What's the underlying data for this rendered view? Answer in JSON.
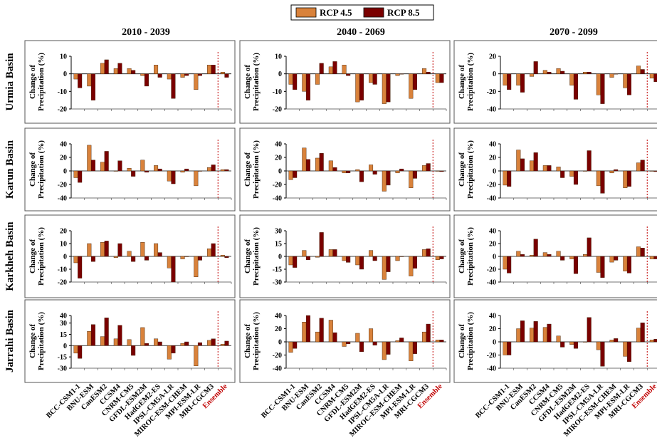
{
  "legend": {
    "items": [
      {
        "label": "RCP 4.5",
        "color": "#d9823b"
      },
      {
        "label": "RCP 8.5",
        "color": "#7a0000"
      }
    ]
  },
  "periods": [
    "2010 - 2039",
    "2040 - 2069",
    "2070 - 2099"
  ],
  "basins": [
    "Urmia Basin",
    "Karun Basin",
    "Karkheh Basin",
    "Jarrahi Basin"
  ],
  "ylabel_line1": "Change of",
  "ylabel_line2": "Precipitation (%)",
  "models": [
    "BCC-CSM1-1",
    "BNU-ESM",
    "CanESM2",
    "CCSM4",
    "CNRM-CM5",
    "GFDL-ESM2M",
    "HadGEM2-ES",
    "IPSL-CM5A-LR",
    "MIROC-ESM-CHEM",
    "MPI-ESM-LR",
    "MRI-CGCM3",
    "Ensemble"
  ],
  "ensemble_color": "#c00000",
  "chart_data": {
    "type": "bar",
    "categories": [
      "BCC-CSM1-1",
      "BNU-ESM",
      "CanESM2",
      "CCSM4",
      "CNRM-CM5",
      "GFDL-ESM2M",
      "HadGEM2-ES",
      "IPSL-CM5A-LR",
      "MIROC-ESM-CHEM",
      "MPI-ESM-LR",
      "MRI-CGCM3",
      "Ensemble"
    ],
    "series_names": [
      "RCP 4.5",
      "RCP 8.5"
    ],
    "panels": [
      {
        "basin": "Urmia Basin",
        "period": "2010 - 2039",
        "yticks": [
          10,
          0,
          -10,
          -20
        ],
        "ylim": [
          -20,
          10
        ],
        "rcp45": [
          -3,
          -7,
          6,
          3,
          3,
          -1,
          5,
          -3,
          -2,
          -9,
          5,
          1
        ],
        "rcp85": [
          -8,
          -15,
          8,
          6,
          2,
          -7,
          -2,
          -14,
          -1,
          -1,
          5,
          -2
        ]
      },
      {
        "basin": "Urmia Basin",
        "period": "2040 - 2069",
        "yticks": [
          10,
          0,
          -10,
          -20
        ],
        "ylim": [
          -20,
          10
        ],
        "rcp45": [
          -6,
          -10,
          -6,
          4,
          5,
          -16,
          -5,
          -17,
          -1,
          -14,
          3,
          -5
        ],
        "rcp85": [
          -9,
          -15,
          6,
          7,
          -1,
          -15,
          -6,
          -16,
          0,
          -9,
          1,
          -5
        ]
      },
      {
        "basin": "Urmia Basin",
        "period": "2070 - 2099",
        "yticks": [
          20,
          0,
          -20,
          -40
        ],
        "ylim": [
          -40,
          20
        ],
        "rcp45": [
          -13,
          -13,
          -3,
          4,
          6,
          -13,
          2,
          -24,
          -4,
          -16,
          9,
          -5
        ],
        "rcp85": [
          -18,
          -21,
          14,
          2,
          3,
          -29,
          2,
          -34,
          0,
          -24,
          5,
          -9
        ]
      },
      {
        "basin": "Karun Basin",
        "period": "2010 - 2039",
        "yticks": [
          40,
          20,
          0,
          -20,
          -40
        ],
        "ylim": [
          -40,
          40
        ],
        "rcp45": [
          -10,
          38,
          13,
          0,
          4,
          16,
          8,
          -15,
          -2,
          -22,
          5,
          2
        ],
        "rcp85": [
          -17,
          16,
          29,
          15,
          -8,
          -2,
          3,
          -19,
          3,
          0,
          9,
          2
        ]
      },
      {
        "basin": "Karun Basin",
        "period": "2040 - 2069",
        "yticks": [
          40,
          20,
          0,
          -20,
          -40
        ],
        "ylim": [
          -40,
          40
        ],
        "rcp45": [
          -13,
          34,
          19,
          15,
          -3,
          2,
          9,
          -30,
          -3,
          -25,
          8,
          0
        ],
        "rcp85": [
          -10,
          17,
          26,
          5,
          -3,
          -16,
          -5,
          -21,
          3,
          -11,
          11,
          -1
        ]
      },
      {
        "basin": "Karun Basin",
        "period": "2070 - 2099",
        "yticks": [
          40,
          20,
          0,
          -20,
          -40
        ],
        "ylim": [
          -40,
          40
        ],
        "rcp45": [
          -21,
          31,
          15,
          8,
          6,
          -8,
          0,
          -22,
          -3,
          -25,
          12,
          0
        ],
        "rcp85": [
          -23,
          18,
          27,
          8,
          -10,
          -20,
          30,
          -33,
          2,
          -23,
          16,
          -1
        ]
      },
      {
        "basin": "Karkheh Basin",
        "period": "2010 - 2039",
        "yticks": [
          20,
          10,
          0,
          -10,
          -20
        ],
        "ylim": [
          -20,
          20
        ],
        "rcp45": [
          -5,
          10,
          11,
          -1,
          4,
          11,
          10,
          -9,
          -2,
          -16,
          6,
          1
        ],
        "rcp85": [
          -17,
          -4,
          12,
          10,
          -4,
          -3,
          3,
          -20,
          0,
          -3,
          10,
          -1
        ]
      },
      {
        "basin": "Karkheh Basin",
        "period": "2040 - 2069",
        "yticks": [
          30,
          15,
          0,
          -15,
          -30
        ],
        "ylim": [
          -30,
          30
        ],
        "rcp45": [
          -10,
          7,
          -1,
          8,
          -5,
          -10,
          7,
          -27,
          -5,
          -23,
          8,
          -4
        ],
        "rcp85": [
          -13,
          -4,
          28,
          8,
          -7,
          -15,
          -5,
          -18,
          0,
          -14,
          9,
          -3
        ]
      },
      {
        "basin": "Karkheh Basin",
        "period": "2070 - 2099",
        "yticks": [
          40,
          20,
          0,
          -20,
          -40
        ],
        "ylim": [
          -40,
          40
        ],
        "rcp45": [
          -20,
          8,
          2,
          6,
          8,
          -4,
          3,
          -25,
          -9,
          -23,
          15,
          -4
        ],
        "rcp85": [
          -26,
          3,
          27,
          3,
          -6,
          -27,
          29,
          -33,
          -6,
          -26,
          13,
          -4
        ]
      },
      {
        "basin": "Jarrahi Basin",
        "period": "2010 - 2039",
        "yticks": [
          40,
          30,
          15,
          0,
          -15,
          -30
        ],
        "ylim": [
          -30,
          40
        ],
        "rcp45": [
          -10,
          19,
          12,
          9,
          8,
          24,
          9,
          -18,
          3,
          -27,
          7,
          2
        ],
        "rcp85": [
          -17,
          28,
          37,
          27,
          -13,
          3,
          5,
          -10,
          5,
          4,
          9,
          6
        ]
      },
      {
        "basin": "Jarrahi Basin",
        "period": "2040 - 2069",
        "yticks": [
          40,
          20,
          0,
          -20,
          -40
        ],
        "ylim": [
          -40,
          40
        ],
        "rcp45": [
          -16,
          30,
          15,
          33,
          -7,
          13,
          20,
          -27,
          2,
          -29,
          15,
          3
        ],
        "rcp85": [
          -10,
          40,
          36,
          14,
          -3,
          -15,
          -5,
          -19,
          6,
          -18,
          27,
          3
        ]
      },
      {
        "basin": "Jarrahi Basin",
        "period": "2070 - 2099",
        "yticks": [
          40,
          20,
          0,
          -20,
          -40
        ],
        "ylim": [
          -40,
          40
        ],
        "rcp45": [
          -20,
          20,
          21,
          22,
          9,
          -4,
          0,
          -12,
          3,
          -22,
          21,
          3
        ],
        "rcp85": [
          -20,
          32,
          31,
          27,
          -8,
          -10,
          37,
          -37,
          5,
          -30,
          29,
          4
        ]
      }
    ]
  }
}
